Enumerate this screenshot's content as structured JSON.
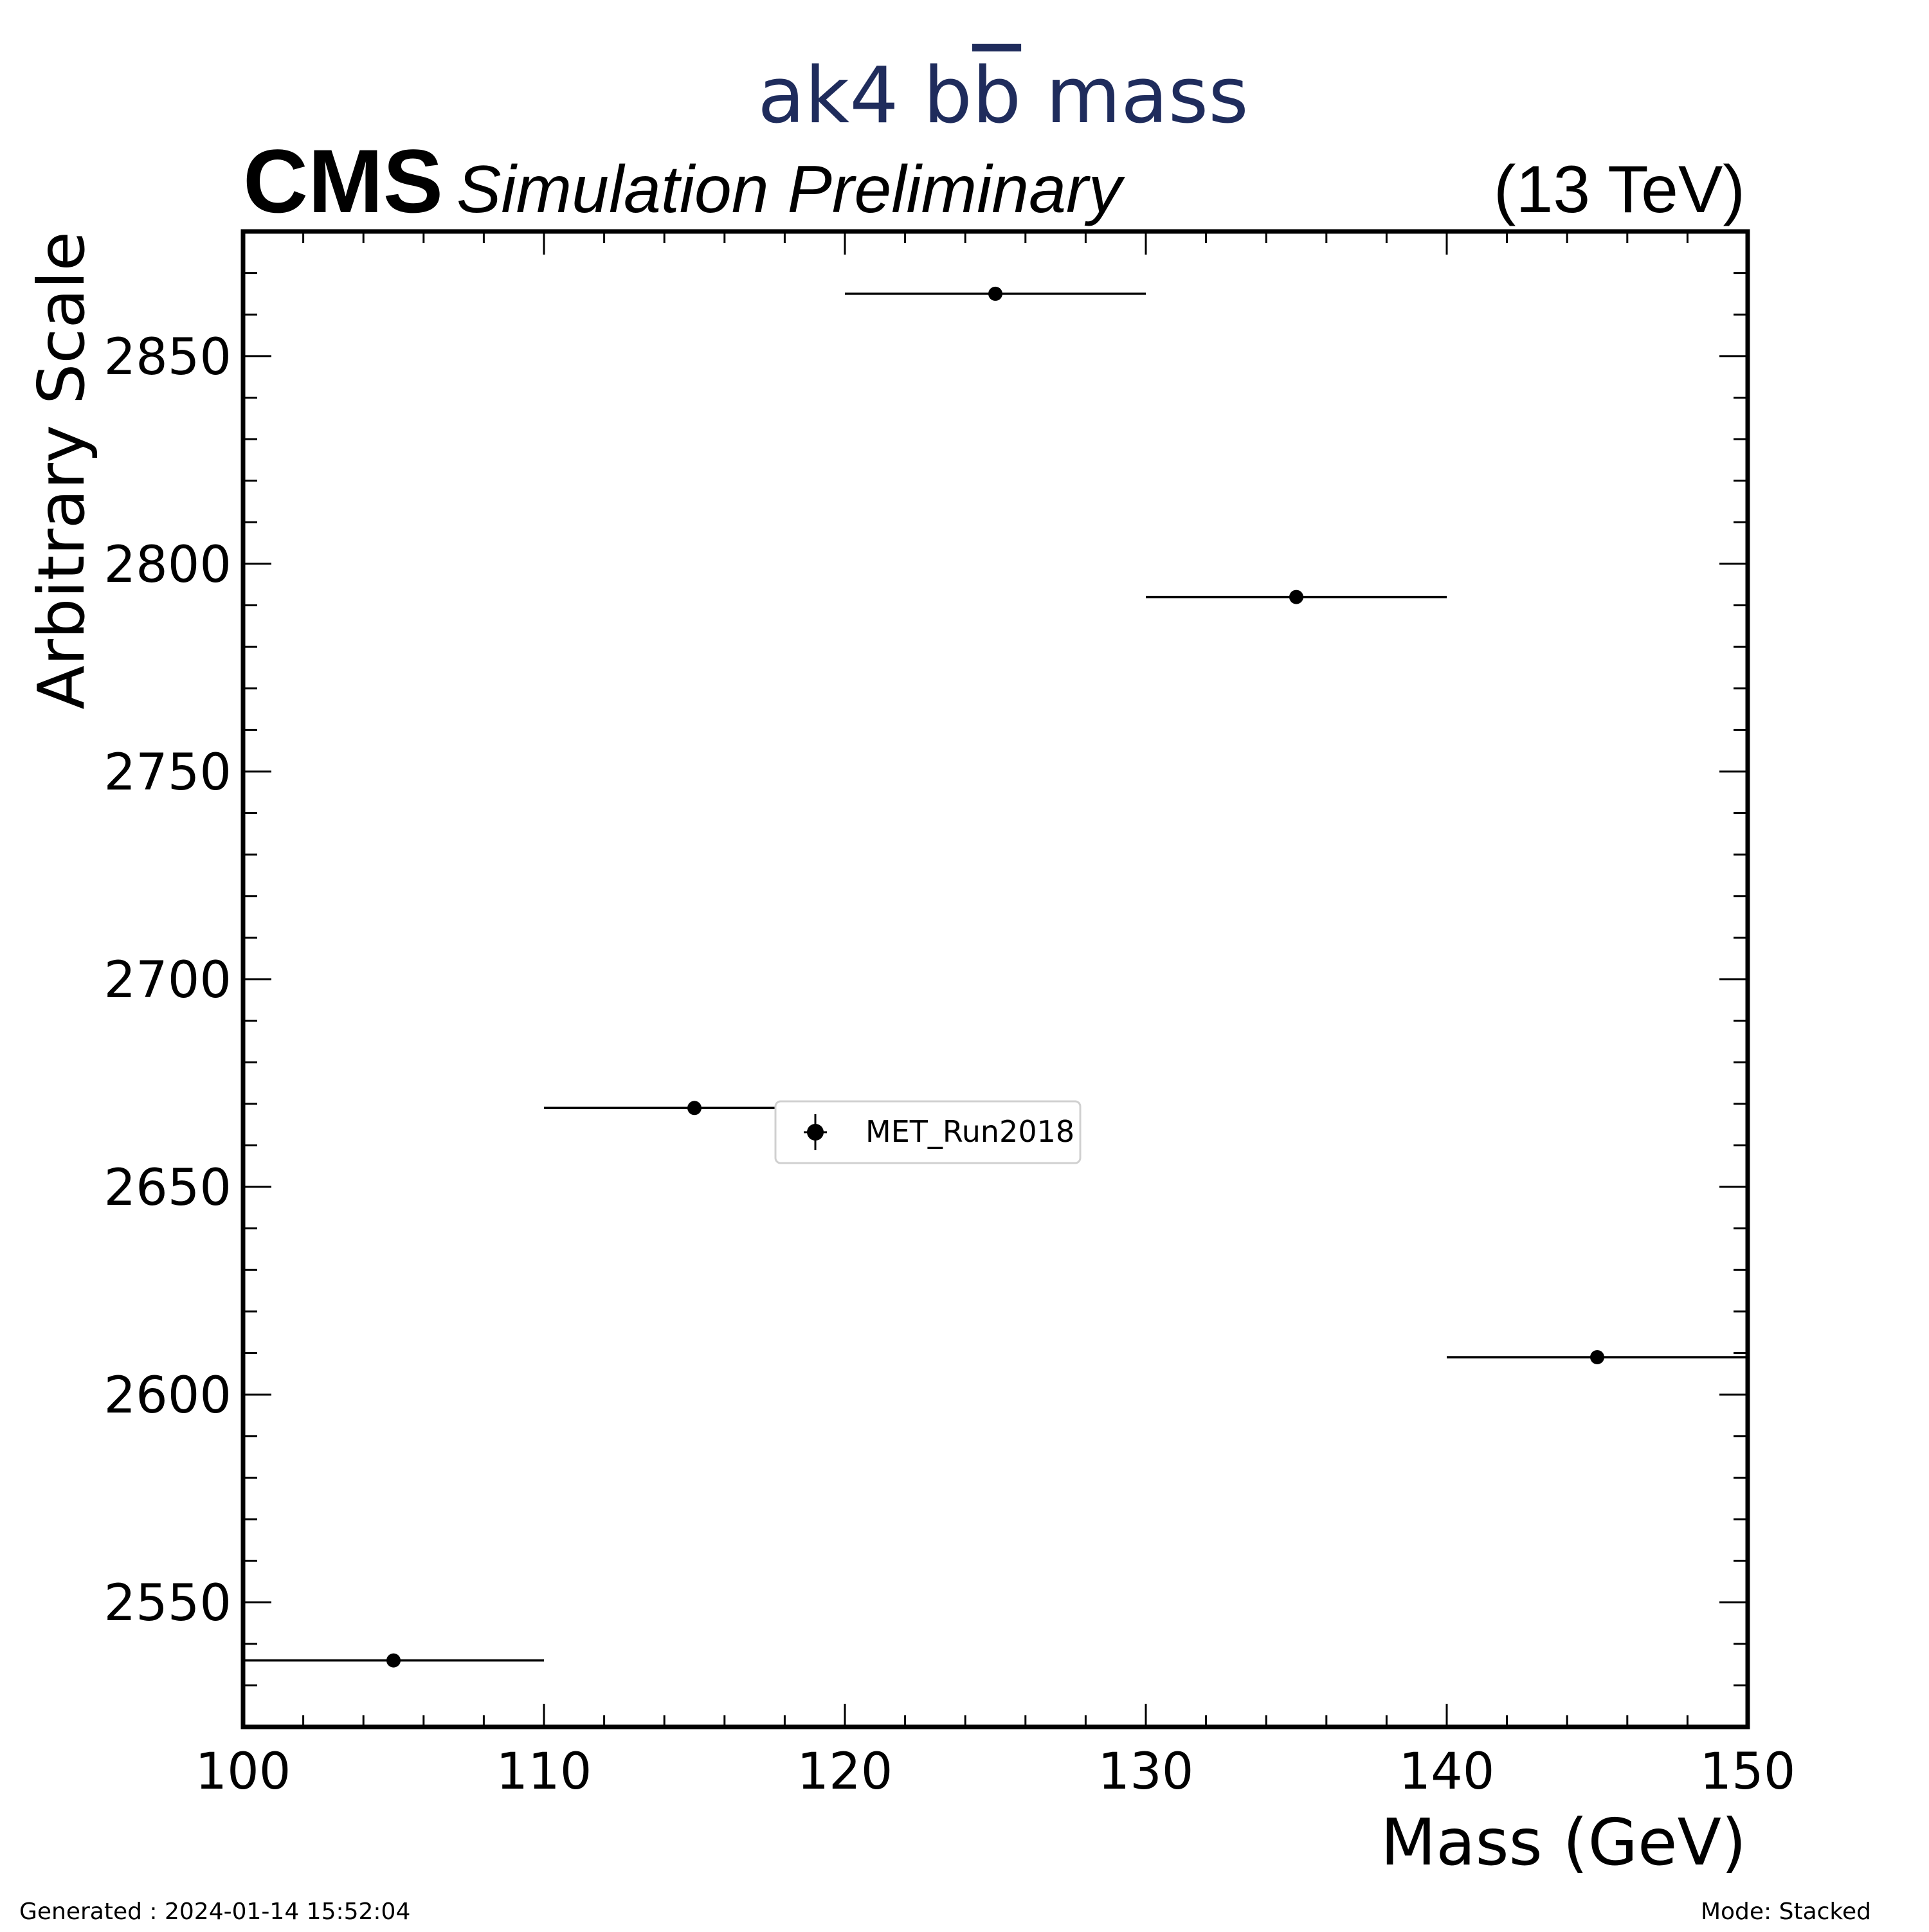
{
  "header": {
    "title_prefix": "ak4 b",
    "title_bbar": "b",
    "title_suffix": " mass",
    "title_color": "#1f2c5c",
    "experiment": "CMS",
    "status": "Simulation Preliminary",
    "energy": "(13 TeV)"
  },
  "footer": {
    "generated": "Generated : 2024-01-14 15:52:04",
    "mode": "Mode: Stacked"
  },
  "chart_data": {
    "type": "scatter",
    "title": "ak4 bb̄ mass",
    "xlabel": "Mass (GeV)",
    "ylabel": "Arbitrary Scale",
    "xlim": [
      100,
      150
    ],
    "ylim": [
      2520,
      2880
    ],
    "x_ticks": [
      100,
      110,
      120,
      130,
      140,
      150
    ],
    "y_ticks": [
      2550,
      2600,
      2650,
      2700,
      2750,
      2800,
      2850
    ],
    "grid": false,
    "legend_position": "center",
    "series": [
      {
        "name": "MET_Run2018",
        "marker": "circle",
        "color": "#000000",
        "points": [
          {
            "x": 105,
            "xlow": 100,
            "xhigh": 110,
            "y": 2536
          },
          {
            "x": 115,
            "xlow": 110,
            "xhigh": 120,
            "y": 2669
          },
          {
            "x": 125,
            "xlow": 120,
            "xhigh": 130,
            "y": 2865
          },
          {
            "x": 135,
            "xlow": 130,
            "xhigh": 140,
            "y": 2792
          },
          {
            "x": 145,
            "xlow": 140,
            "xhigh": 150,
            "y": 2609
          }
        ]
      }
    ]
  }
}
